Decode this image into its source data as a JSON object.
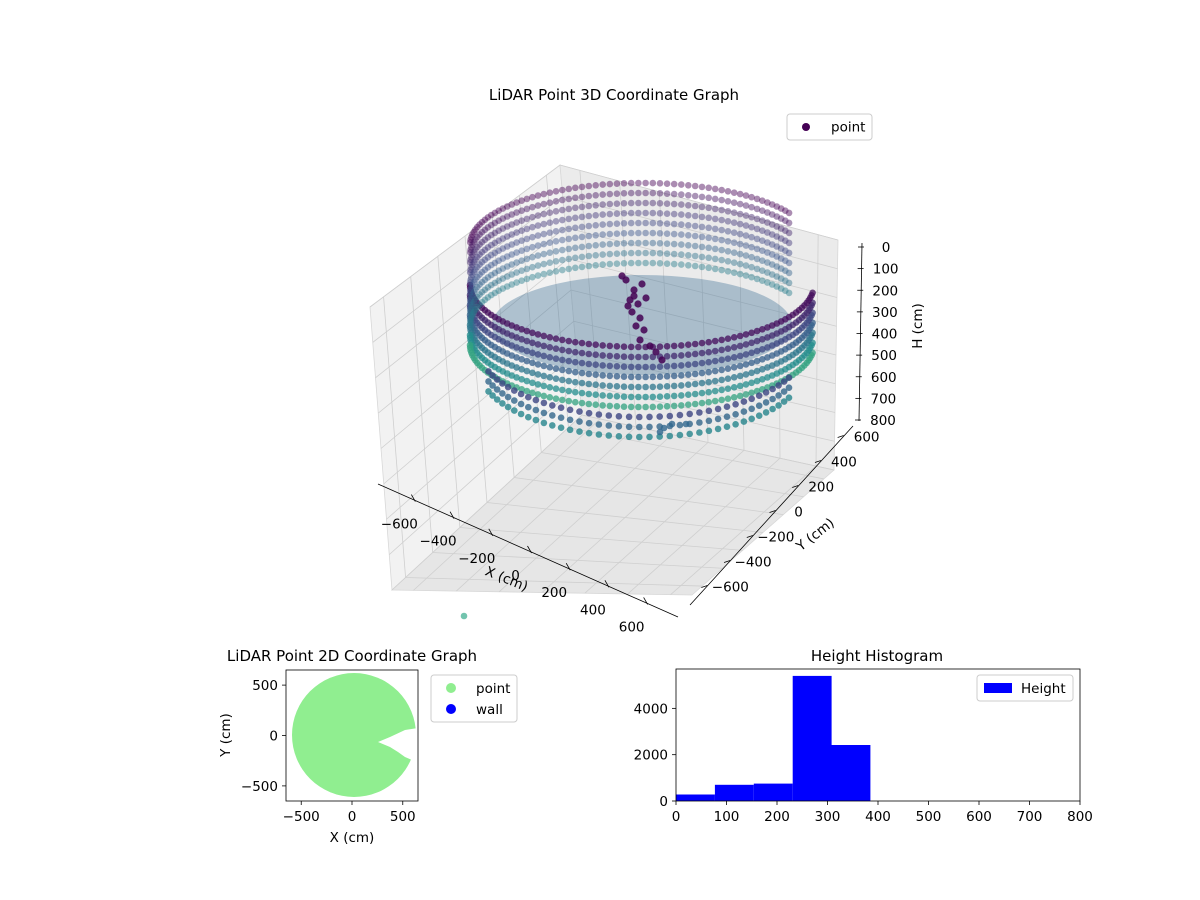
{
  "colors": {
    "point_dark": "#440154",
    "point_mid": "#31688e",
    "point_teal": "#35b779",
    "cloud_2d": "#90ee90",
    "wall_2d": "#0000ff",
    "hist": "#0000ff",
    "pane": "#f2f2f2"
  },
  "chart_data": [
    {
      "type": "scatter",
      "title": "LiDAR Point 3D Coordinate Graph",
      "xlabel": "X (cm)",
      "ylabel": "Y (cm)",
      "zlabel": "H (cm)",
      "xlim": [
        -700,
        700
      ],
      "ylim": [
        -700,
        700
      ],
      "zlim": [
        0,
        800
      ],
      "z_inverted": true,
      "x_ticks": [
        "−600",
        "−400",
        "−200",
        "0",
        "200",
        "400",
        "600"
      ],
      "y_ticks": [
        "−600",
        "−400",
        "−200",
        "0",
        "200",
        "400",
        "600"
      ],
      "z_ticks": [
        "0",
        "100",
        "200",
        "300",
        "400",
        "500",
        "600",
        "700",
        "800"
      ],
      "legend": {
        "placement": "top-right",
        "entries": [
          "point"
        ]
      },
      "grid": true,
      "series": [
        {
          "name": "point",
          "shape": "ring wall of points, radius about 600 cm, heights about 100–400 cm, with a gap on the +X side",
          "ring_radius": 600,
          "z_range": [
            100,
            400
          ]
        }
      ]
    },
    {
      "type": "scatter",
      "title": "LiDAR Point 2D Coordinate Graph",
      "xlabel": "X (cm)",
      "ylabel": "Y (cm)",
      "xlim": [
        -650,
        650
      ],
      "ylim": [
        -650,
        650
      ],
      "x_ticks": [
        "−500",
        "0",
        "500"
      ],
      "y_ticks": [
        "−500",
        "0",
        "500"
      ],
      "legend": {
        "placement": "outside right",
        "entries": [
          "point",
          "wall"
        ]
      },
      "series": [
        {
          "name": "point",
          "shape": "filled disc, radius about 620 cm, notch on +X side near Y≈-50"
        },
        {
          "name": "wall",
          "values": []
        }
      ]
    },
    {
      "type": "bar",
      "title": "Height Histogram",
      "xlim": [
        0,
        800
      ],
      "ylim": [
        0,
        5700
      ],
      "x_ticks": [
        "0",
        "100",
        "200",
        "300",
        "400",
        "500",
        "600",
        "700",
        "800"
      ],
      "y_ticks": [
        "0",
        "2000",
        "4000"
      ],
      "legend": {
        "placement": "top-right",
        "entries": [
          "Height"
        ]
      },
      "series": [
        {
          "name": "Height",
          "bin_edges": [
            0,
            77,
            154,
            231,
            308,
            385
          ],
          "values": [
            280,
            700,
            750,
            5400,
            2420
          ]
        }
      ]
    }
  ]
}
